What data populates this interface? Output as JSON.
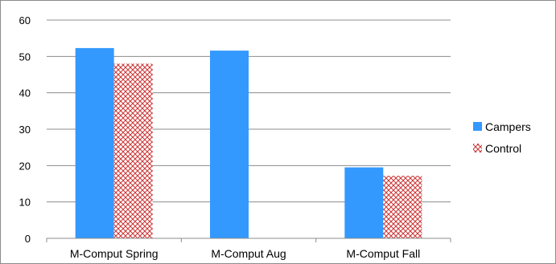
{
  "chart_data": {
    "type": "bar",
    "categories": [
      "M-Comput Spring",
      "M-Comput Aug",
      "M-Comput Fall"
    ],
    "series": [
      {
        "name": "Campers",
        "values": [
          52.3,
          51.6,
          19.5
        ],
        "color": "#3399ff",
        "pattern": "solid"
      },
      {
        "name": "Control",
        "values": [
          48.0,
          null,
          17.2
        ],
        "color": "#cc3333",
        "pattern": "crosshatch"
      }
    ],
    "ylim": [
      0,
      60
    ],
    "yticks": [
      "0",
      "10",
      "20",
      "30",
      "40",
      "50",
      "60"
    ],
    "ytick_values": [
      0,
      10,
      20,
      30,
      40,
      50,
      60
    ],
    "grid": true,
    "legend_position": "right"
  }
}
